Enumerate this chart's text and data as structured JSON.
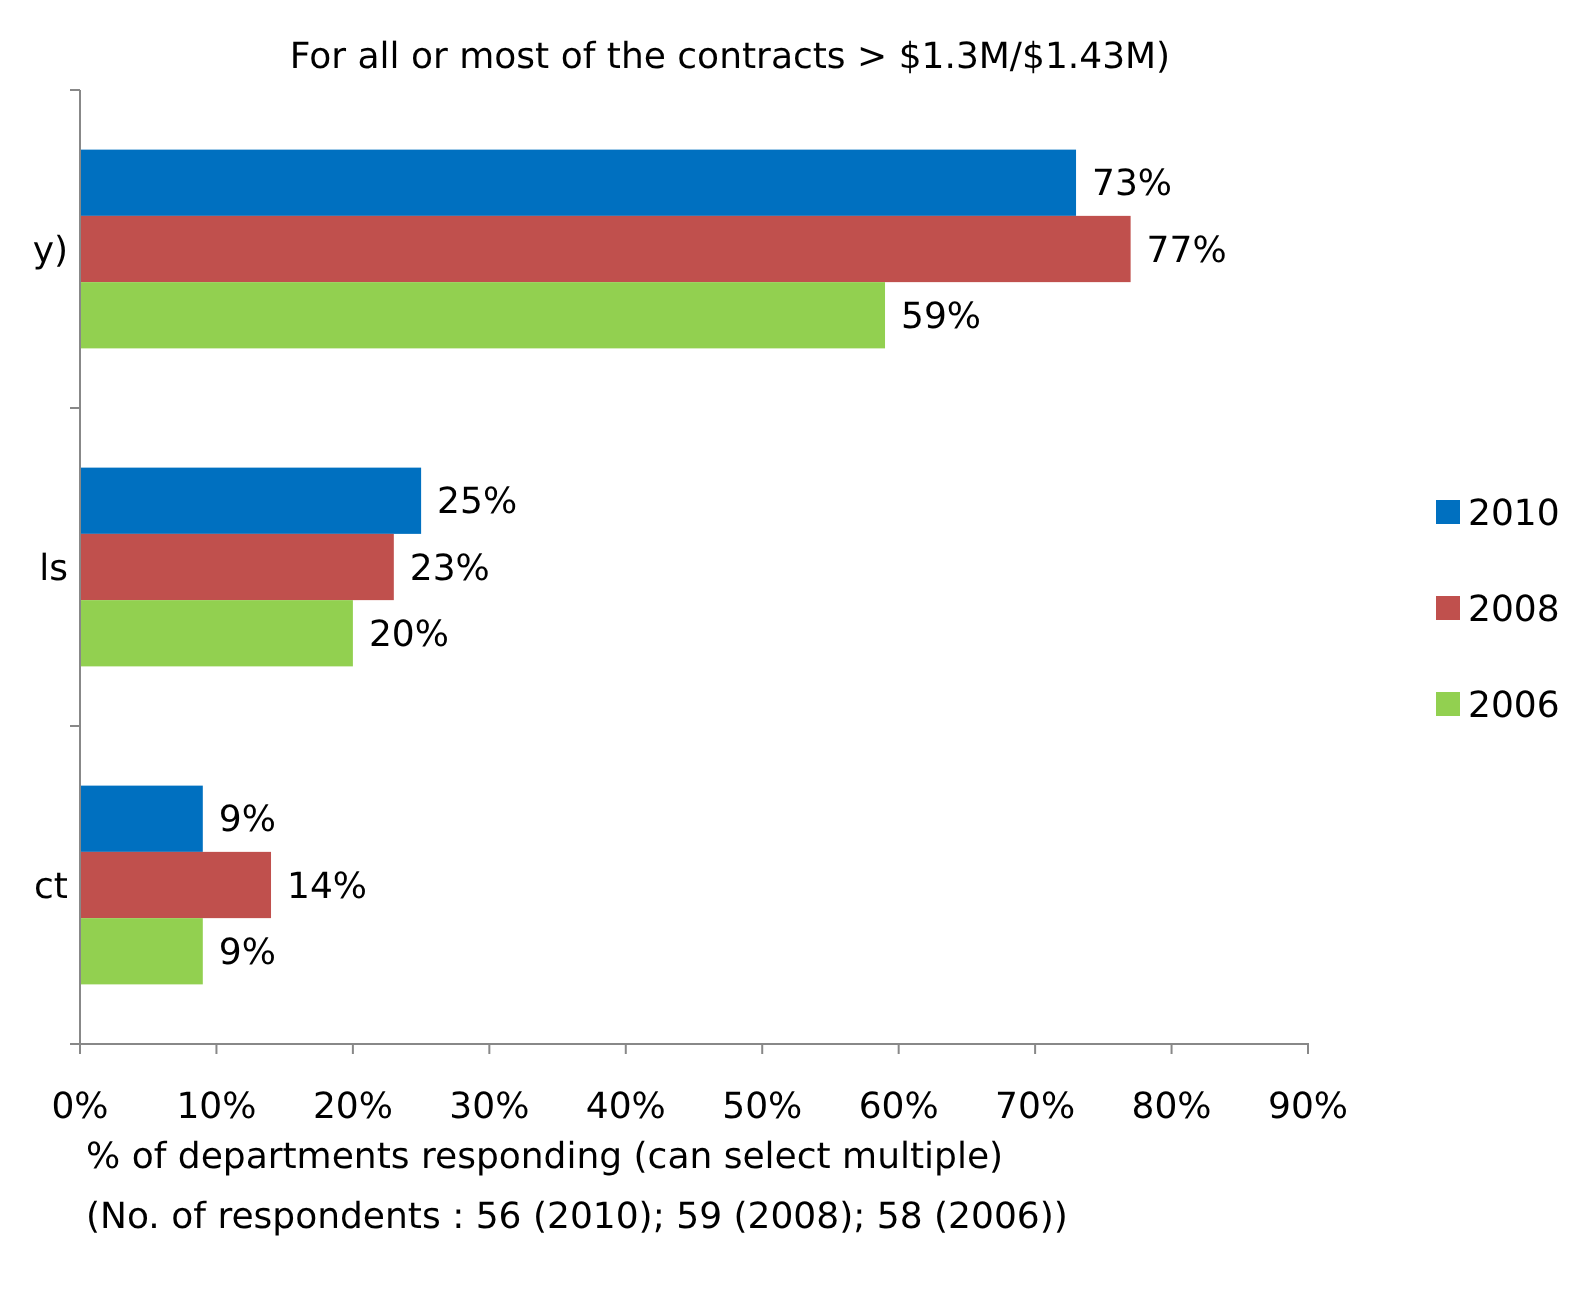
{
  "chart_data": {
    "type": "bar",
    "orientation": "horizontal",
    "title": "For all or most of the contracts > $1.3M/$1.43M)",
    "xlabel": "% of departments responding (can select multiple)",
    "annotations": [
      "(No. of respondents : 56 (2010); 59 (2008); 58 (2006))"
    ],
    "categories": [
      "y)",
      "ls",
      "ct"
    ],
    "series": [
      {
        "name": "2010",
        "color": "#0070c0",
        "values": [
          73,
          25,
          9
        ],
        "value_labels": [
          "73%",
          "25%",
          "9%"
        ]
      },
      {
        "name": "2008",
        "color": "#c0504d",
        "values": [
          77,
          23,
          14
        ],
        "value_labels": [
          "77%",
          "23%",
          "14%"
        ]
      },
      {
        "name": "2006",
        "color": "#92d050",
        "values": [
          59,
          20,
          9
        ],
        "value_labels": [
          "59%",
          "20%",
          "9%"
        ]
      }
    ],
    "xlim": [
      0,
      90
    ],
    "xticks": [
      {
        "value": 0,
        "label": "0%"
      },
      {
        "value": 10,
        "label": "10%"
      },
      {
        "value": 20,
        "label": "20%"
      },
      {
        "value": 30,
        "label": "30%"
      },
      {
        "value": 40,
        "label": "40%"
      },
      {
        "value": 50,
        "label": "50%"
      },
      {
        "value": 60,
        "label": "60%"
      },
      {
        "value": 70,
        "label": "70%"
      },
      {
        "value": 80,
        "label": "80%"
      },
      {
        "value": 90,
        "label": "90%"
      }
    ],
    "grid": false,
    "legend": "right"
  }
}
